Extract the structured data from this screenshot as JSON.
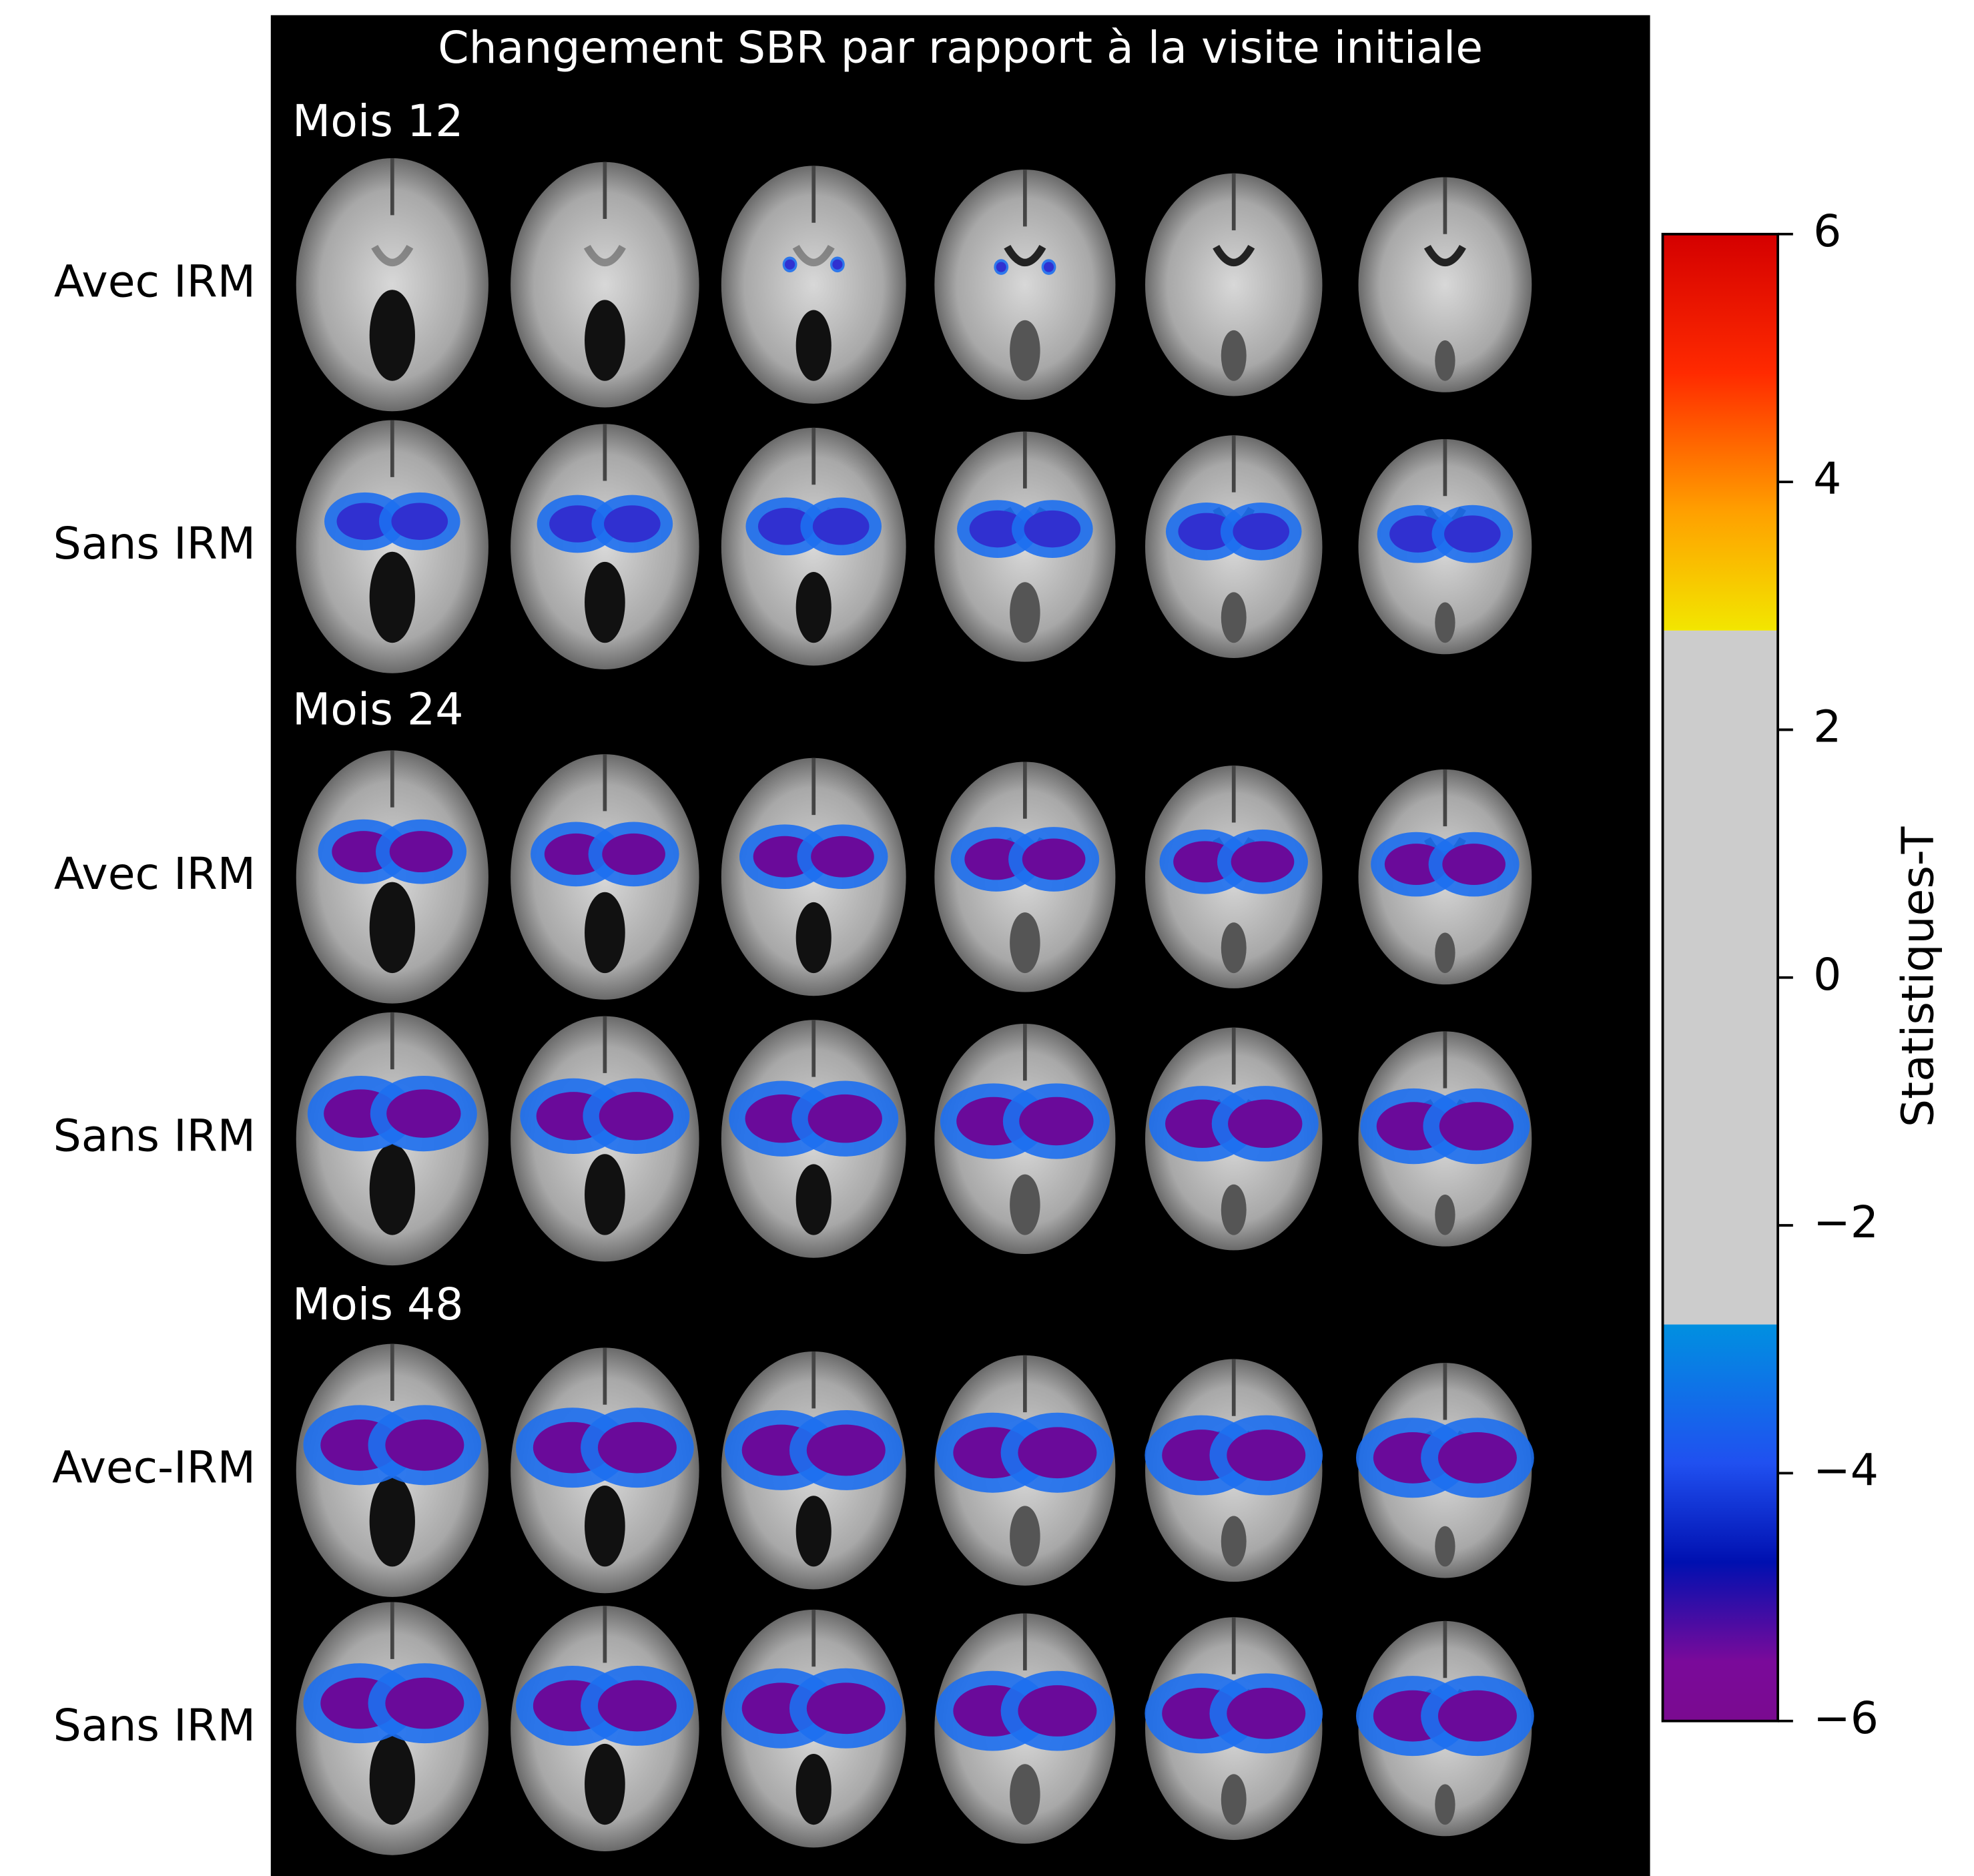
{
  "title": "Changement SBR par rapport à la visite initiale",
  "groups": [
    {
      "label": "Mois 12",
      "rows": [
        "Avec IRM",
        "Sans IRM"
      ]
    },
    {
      "label": "Mois 24",
      "rows": [
        "Avec IRM",
        "Sans IRM"
      ]
    },
    {
      "label": "Mois 48",
      "rows": [
        "Avec-IRM",
        "Sans IRM"
      ]
    }
  ],
  "colorbar": {
    "label": "Statistiques-T",
    "lim": [
      -6,
      6
    ],
    "ticks": [
      6,
      4,
      2,
      0,
      {
        "value": -2,
        "label": "−2"
      },
      {
        "value": -4,
        "label": "−4"
      },
      {
        "value": -6,
        "label": "−6"
      }
    ],
    "threshold": 2.8
  }
}
